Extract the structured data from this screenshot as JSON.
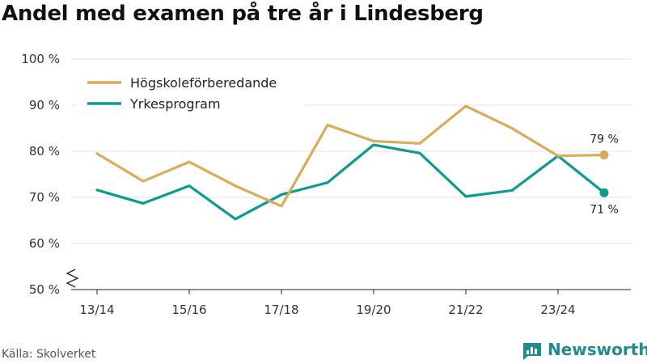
{
  "title": "Andel med examen på tre år i Lindesberg",
  "source": "Källa: Skolverket",
  "brand": {
    "name": "Newsworthy",
    "logo_icon": "newsworthy-logo-icon",
    "color": "#1f8c8c"
  },
  "chart_data": {
    "type": "line",
    "title": "Andel med examen på tre år i Lindesberg",
    "xlabel": "",
    "ylabel": "",
    "ylim": [
      50,
      100
    ],
    "yticks": [
      50,
      60,
      70,
      80,
      90,
      100
    ],
    "ytick_suffix": " %",
    "x_tick_labels": [
      "13/14",
      "15/16",
      "17/18",
      "19/20",
      "21/22",
      "23/24"
    ],
    "x_tick_positions": [
      0,
      2,
      4,
      6,
      8,
      10
    ],
    "categories": [
      "13/14",
      "14/15",
      "15/16",
      "16/17",
      "17/18",
      "18/19",
      "19/20",
      "20/21",
      "21/22",
      "22/23",
      "23/24",
      "24/25"
    ],
    "grid": true,
    "axis_break": true,
    "legend_position": "top-left",
    "series": [
      {
        "name": "Högskoleförberedande",
        "color": "#d9ac5a",
        "values": [
          79.5,
          73.5,
          77.7,
          72.5,
          68.1,
          85.7,
          82.2,
          81.7,
          89.8,
          85.0,
          79.0,
          79.2
        ],
        "end_label": "79 %"
      },
      {
        "name": "Yrkesprogram",
        "color": "#0d9a90",
        "values": [
          71.6,
          68.7,
          72.5,
          65.3,
          70.6,
          73.2,
          81.4,
          79.6,
          70.2,
          71.5,
          79.0,
          71.0
        ],
        "end_label": "71 %"
      }
    ]
  }
}
